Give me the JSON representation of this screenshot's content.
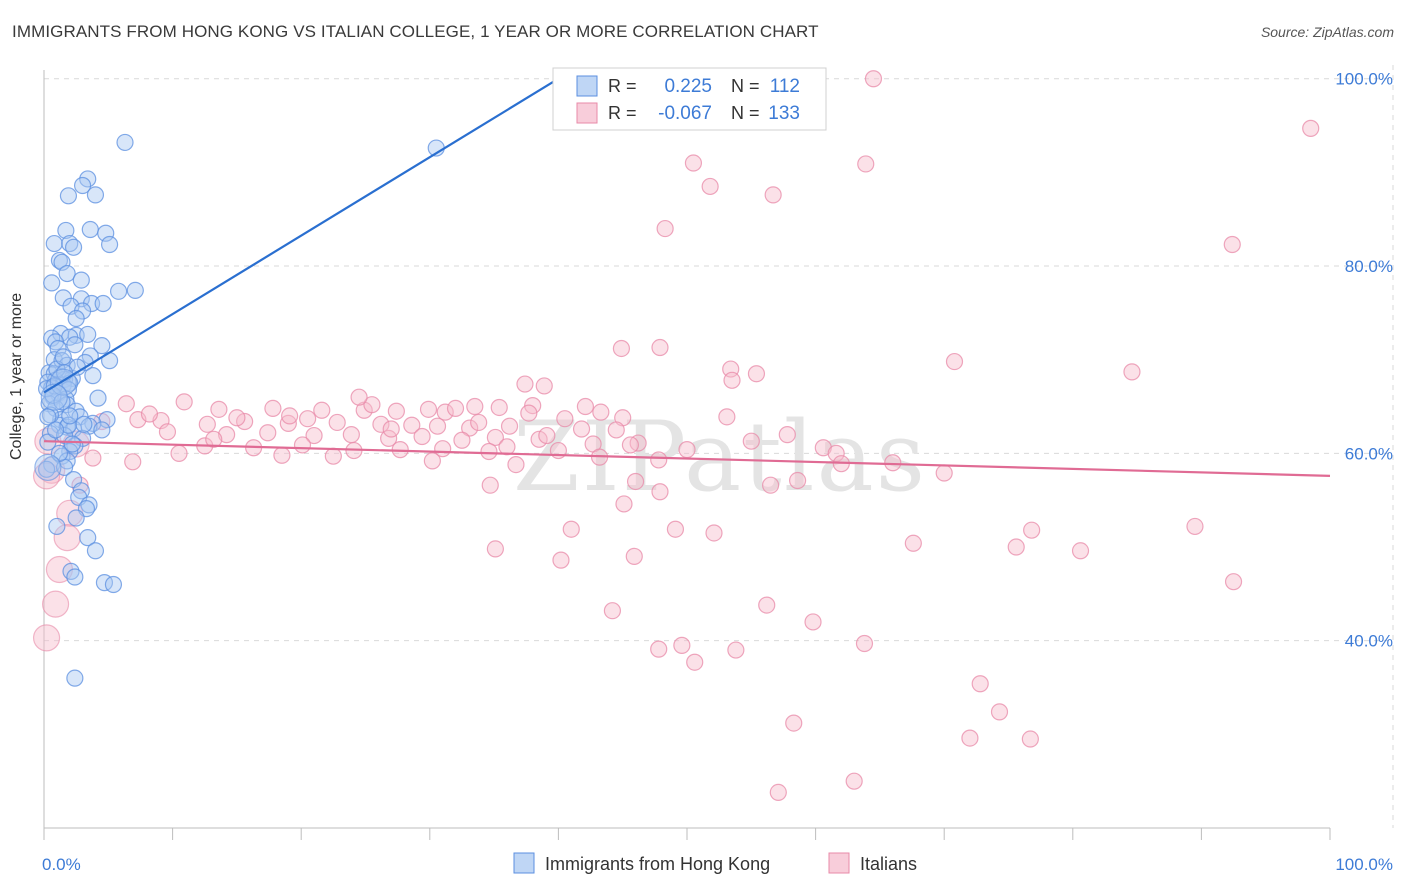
{
  "title": "IMMIGRANTS FROM HONG KONG VS ITALIAN COLLEGE, 1 YEAR OR MORE CORRELATION CHART",
  "source": "Source: ZipAtlas.com",
  "watermark": "ZIPatlas",
  "colors": {
    "blue": "#5b8fe0",
    "blue_fill": "#a9c8f2",
    "blue_line": "#2a6fd0",
    "pink": "#e88aa8",
    "pink_fill": "#f6bccd",
    "pink_line": "#e06b94",
    "tick_blue": "#3d7bd6",
    "grid": "#d9d9d9"
  },
  "legend": {
    "rows": [
      {
        "series": "blue",
        "r_label": "R =",
        "r_value": "0.225",
        "n_label": "N =",
        "n_value": "112"
      },
      {
        "series": "pink",
        "r_label": "R =",
        "r_value": "-0.067",
        "n_label": "N =",
        "n_value": "133"
      }
    ]
  },
  "chart_data": {
    "type": "scatter",
    "title": "IMMIGRANTS FROM HONG KONG VS ITALIAN COLLEGE, 1 YEAR OR MORE CORRELATION CHART",
    "xlabel": "",
    "ylabel": "College, 1 year or more",
    "xlim": [
      0,
      100
    ],
    "ylim": [
      20,
      102
    ],
    "x_tick_labels": [
      {
        "value": 0,
        "label": "0.0%"
      },
      {
        "value": 100,
        "label": "100.0%"
      }
    ],
    "y_tick_labels": [
      {
        "value": 100,
        "label": "100.0%"
      },
      {
        "value": 80,
        "label": "80.0%"
      },
      {
        "value": 60,
        "label": "60.0%"
      },
      {
        "value": 40,
        "label": "40.0%"
      }
    ],
    "grid": true,
    "legend_position": "bottom",
    "series": [
      {
        "name": "Immigrants from Hong Kong",
        "color_key": "blue",
        "trend": {
          "x": [
            0,
            40
          ],
          "y": [
            66.5,
            100
          ]
        },
        "points": [
          [
            6.3,
            93.2
          ],
          [
            30.5,
            92.6
          ],
          [
            3.4,
            89.3
          ],
          [
            3.0,
            88.6
          ],
          [
            1.9,
            87.5
          ],
          [
            4.0,
            87.6
          ],
          [
            1.7,
            83.8
          ],
          [
            3.6,
            83.9
          ],
          [
            4.8,
            83.5
          ],
          [
            0.8,
            82.4
          ],
          [
            2.0,
            82.4
          ],
          [
            2.3,
            82.0
          ],
          [
            5.1,
            82.3
          ],
          [
            1.2,
            80.6
          ],
          [
            1.4,
            80.4
          ],
          [
            1.8,
            79.2
          ],
          [
            2.9,
            78.5
          ],
          [
            0.6,
            78.2
          ],
          [
            5.8,
            77.3
          ],
          [
            7.1,
            77.4
          ],
          [
            1.5,
            76.6
          ],
          [
            2.9,
            76.5
          ],
          [
            3.7,
            76.0
          ],
          [
            4.6,
            76.0
          ],
          [
            2.1,
            75.7
          ],
          [
            3.0,
            75.2
          ],
          [
            2.5,
            74.4
          ],
          [
            1.3,
            72.8
          ],
          [
            2.5,
            72.6
          ],
          [
            2.0,
            72.4
          ],
          [
            0.6,
            72.3
          ],
          [
            0.9,
            71.9
          ],
          [
            3.4,
            72.7
          ],
          [
            4.5,
            71.5
          ],
          [
            1.1,
            71.2
          ],
          [
            2.4,
            71.6
          ],
          [
            3.6,
            70.4
          ],
          [
            0.8,
            70.0
          ],
          [
            1.4,
            69.9
          ],
          [
            5.1,
            69.9
          ],
          [
            3.2,
            69.7
          ],
          [
            1.8,
            69.4
          ],
          [
            0.4,
            68.6
          ],
          [
            0.8,
            68.5
          ],
          [
            1.3,
            68.2
          ],
          [
            2.2,
            68.0
          ],
          [
            3.8,
            68.3
          ],
          [
            0.9,
            67.8
          ],
          [
            1.6,
            67.9
          ],
          [
            0.3,
            67.6
          ],
          [
            1.5,
            67.3
          ],
          [
            2.0,
            67.5
          ],
          [
            0.6,
            67.0
          ],
          [
            1.9,
            66.8
          ],
          [
            1.1,
            66.4
          ],
          [
            0.7,
            66.0
          ],
          [
            1.7,
            65.8
          ],
          [
            4.2,
            65.9
          ],
          [
            1.8,
            65.2
          ],
          [
            0.4,
            65.3
          ],
          [
            0.9,
            64.8
          ],
          [
            2.5,
            64.5
          ],
          [
            1.3,
            63.6
          ],
          [
            2.8,
            63.9
          ],
          [
            4.9,
            63.6
          ],
          [
            3.8,
            63.2
          ],
          [
            1.2,
            63.0
          ],
          [
            3.5,
            62.9
          ],
          [
            1.8,
            62.8
          ],
          [
            2.3,
            62.6
          ],
          [
            4.5,
            62.5
          ],
          [
            0.5,
            62.1
          ],
          [
            1.6,
            61.9
          ],
          [
            3.0,
            61.6
          ],
          [
            0.3,
            61.2
          ],
          [
            2.4,
            60.8
          ],
          [
            2.0,
            60.2
          ],
          [
            1.4,
            59.7
          ],
          [
            1.8,
            59.2
          ],
          [
            0.6,
            58.8
          ],
          [
            1.6,
            58.5
          ],
          [
            0.2,
            58.3
          ],
          [
            2.3,
            57.2
          ],
          [
            2.9,
            56.0
          ],
          [
            2.7,
            55.3
          ],
          [
            3.5,
            54.5
          ],
          [
            3.3,
            54.1
          ],
          [
            2.5,
            53.1
          ],
          [
            1.0,
            52.2
          ],
          [
            3.4,
            51.0
          ],
          [
            4.0,
            49.6
          ],
          [
            2.1,
            47.4
          ],
          [
            2.4,
            46.8
          ],
          [
            4.7,
            46.2
          ],
          [
            5.4,
            46.0
          ],
          [
            2.4,
            36.0
          ],
          [
            0.2,
            66.9
          ],
          [
            0.8,
            67.2
          ],
          [
            1.0,
            69.0
          ],
          [
            1.5,
            70.3
          ],
          [
            2.6,
            69.2
          ],
          [
            0.5,
            64.1
          ],
          [
            1.9,
            63.0
          ],
          [
            0.3,
            63.9
          ],
          [
            2.2,
            61.0
          ],
          [
            1.2,
            60.0
          ],
          [
            0.7,
            66.2
          ],
          [
            1.4,
            65.5
          ],
          [
            2.0,
            64.0
          ],
          [
            0.9,
            62.5
          ],
          [
            3.1,
            63.1
          ],
          [
            1.6,
            68.6
          ]
        ],
        "big_points": [
          [
            1.5,
            67.6
          ],
          [
            0.3,
            58.5
          ],
          [
            0.8,
            66.0
          ]
        ]
      },
      {
        "name": "Italians",
        "color_key": "pink",
        "trend": {
          "x": [
            0,
            100
          ],
          "y": [
            61.3,
            57.6
          ]
        },
        "points": [
          [
            64.5,
            100.0
          ],
          [
            98.5,
            94.7
          ],
          [
            50.5,
            91.0
          ],
          [
            63.9,
            90.9
          ],
          [
            51.8,
            88.5
          ],
          [
            56.7,
            87.6
          ],
          [
            48.3,
            84.0
          ],
          [
            92.4,
            82.3
          ],
          [
            44.9,
            71.2
          ],
          [
            47.9,
            71.3
          ],
          [
            70.8,
            69.8
          ],
          [
            53.4,
            69.0
          ],
          [
            55.4,
            68.5
          ],
          [
            84.6,
            68.7
          ],
          [
            37.4,
            67.4
          ],
          [
            38.9,
            67.2
          ],
          [
            33.5,
            65.0
          ],
          [
            38.0,
            65.1
          ],
          [
            6.4,
            65.3
          ],
          [
            10.9,
            65.5
          ],
          [
            13.6,
            64.7
          ],
          [
            17.8,
            64.8
          ],
          [
            21.6,
            64.6
          ],
          [
            24.9,
            64.6
          ],
          [
            27.4,
            64.5
          ],
          [
            29.9,
            64.7
          ],
          [
            31.2,
            64.4
          ],
          [
            35.4,
            64.9
          ],
          [
            37.7,
            64.3
          ],
          [
            40.5,
            63.7
          ],
          [
            43.3,
            64.4
          ],
          [
            45.0,
            63.8
          ],
          [
            53.1,
            63.9
          ],
          [
            4.5,
            63.4
          ],
          [
            7.3,
            63.6
          ],
          [
            9.1,
            63.5
          ],
          [
            12.7,
            63.1
          ],
          [
            15.6,
            63.4
          ],
          [
            19.0,
            63.2
          ],
          [
            22.8,
            63.3
          ],
          [
            26.2,
            63.1
          ],
          [
            28.6,
            63.0
          ],
          [
            30.6,
            62.9
          ],
          [
            33.1,
            62.7
          ],
          [
            36.2,
            62.9
          ],
          [
            41.8,
            62.6
          ],
          [
            44.5,
            62.5
          ],
          [
            9.6,
            62.3
          ],
          [
            14.2,
            62.0
          ],
          [
            17.4,
            62.2
          ],
          [
            21.0,
            61.9
          ],
          [
            23.9,
            62.0
          ],
          [
            26.8,
            61.6
          ],
          [
            29.4,
            61.8
          ],
          [
            32.5,
            61.4
          ],
          [
            35.1,
            61.7
          ],
          [
            38.5,
            61.5
          ],
          [
            42.7,
            61.0
          ],
          [
            46.2,
            61.1
          ],
          [
            12.5,
            60.8
          ],
          [
            16.3,
            60.6
          ],
          [
            20.1,
            60.9
          ],
          [
            24.1,
            60.3
          ],
          [
            27.7,
            60.4
          ],
          [
            31.0,
            60.5
          ],
          [
            34.6,
            60.2
          ],
          [
            40.0,
            60.3
          ],
          [
            43.2,
            59.6
          ],
          [
            47.8,
            59.3
          ],
          [
            60.6,
            60.6
          ],
          [
            3.8,
            59.5
          ],
          [
            6.9,
            59.1
          ],
          [
            10.5,
            60.0
          ],
          [
            18.5,
            59.8
          ],
          [
            22.5,
            59.7
          ],
          [
            30.2,
            59.2
          ],
          [
            36.7,
            58.8
          ],
          [
            46.0,
            57.0
          ],
          [
            56.5,
            56.6
          ],
          [
            58.6,
            57.1
          ],
          [
            34.7,
            56.6
          ],
          [
            2.8,
            56.6
          ],
          [
            45.1,
            54.6
          ],
          [
            41.0,
            51.9
          ],
          [
            49.1,
            51.9
          ],
          [
            52.1,
            51.5
          ],
          [
            67.6,
            50.4
          ],
          [
            75.6,
            50.0
          ],
          [
            76.8,
            51.8
          ],
          [
            89.5,
            52.2
          ],
          [
            35.1,
            49.8
          ],
          [
            40.2,
            48.6
          ],
          [
            45.9,
            49.0
          ],
          [
            80.6,
            49.6
          ],
          [
            92.5,
            46.3
          ],
          [
            56.2,
            43.8
          ],
          [
            44.2,
            43.2
          ],
          [
            59.8,
            42.0
          ],
          [
            49.6,
            39.5
          ],
          [
            53.8,
            39.0
          ],
          [
            47.8,
            39.1
          ],
          [
            63.8,
            39.7
          ],
          [
            50.6,
            37.7
          ],
          [
            72.8,
            35.4
          ],
          [
            74.3,
            32.4
          ],
          [
            58.3,
            31.2
          ],
          [
            72.0,
            29.6
          ],
          [
            76.7,
            29.5
          ],
          [
            63.0,
            25.0
          ],
          [
            57.1,
            23.8
          ],
          [
            53.5,
            67.8
          ],
          [
            47.9,
            55.9
          ],
          [
            57.8,
            62.0
          ],
          [
            61.6,
            60.0
          ],
          [
            39.1,
            61.9
          ],
          [
            33.8,
            63.3
          ],
          [
            25.5,
            65.2
          ],
          [
            19.1,
            64.0
          ],
          [
            13.2,
            61.5
          ],
          [
            8.2,
            64.2
          ],
          [
            42.1,
            65.0
          ],
          [
            15.0,
            63.8
          ],
          [
            27.0,
            62.6
          ],
          [
            32.0,
            64.8
          ],
          [
            36.0,
            60.7
          ],
          [
            45.6,
            60.9
          ],
          [
            50.0,
            60.4
          ],
          [
            55.0,
            61.3
          ],
          [
            62.0,
            58.9
          ],
          [
            66.0,
            59.0
          ],
          [
            70.0,
            57.9
          ],
          [
            24.5,
            66.0
          ],
          [
            20.5,
            63.7
          ]
        ],
        "big_points": [
          [
            0.3,
            61.3
          ],
          [
            0.6,
            58.2
          ],
          [
            0.2,
            57.6
          ],
          [
            2.5,
            61.0
          ],
          [
            2.0,
            53.6
          ],
          [
            1.8,
            51.0
          ],
          [
            1.2,
            47.6
          ],
          [
            0.9,
            43.9
          ],
          [
            0.2,
            40.3
          ]
        ]
      }
    ]
  }
}
